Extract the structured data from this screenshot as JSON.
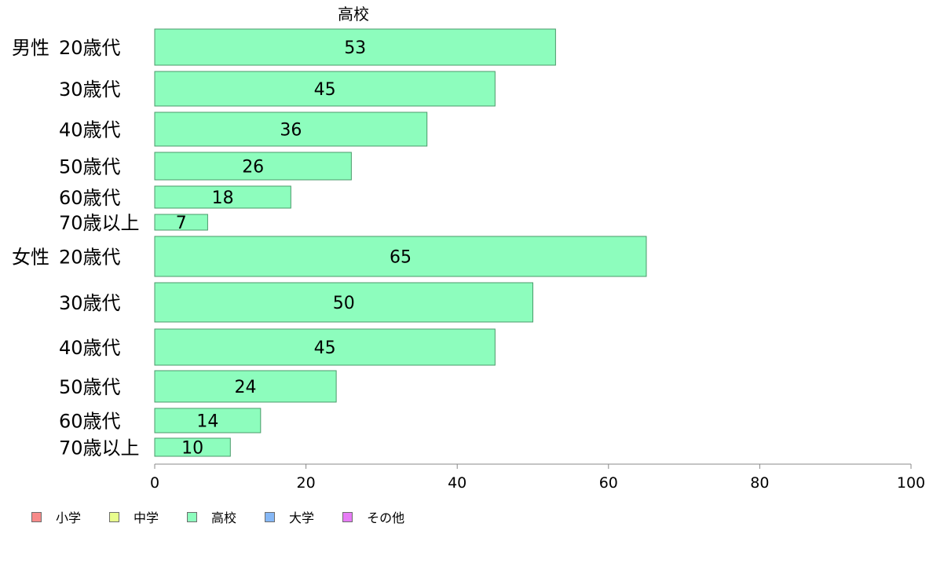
{
  "chart_data": {
    "type": "bar",
    "orientation": "horizontal",
    "title": "高校",
    "xlim": [
      0,
      100
    ],
    "xticks": [
      0,
      20,
      40,
      60,
      80,
      100
    ],
    "groups": [
      {
        "label": "男性",
        "categories": [
          "20歳代",
          "30歳代",
          "40歳代",
          "50歳代",
          "60歳代",
          "70歳以上"
        ],
        "values": [
          53,
          45,
          36,
          26,
          18,
          7
        ]
      },
      {
        "label": "女性",
        "categories": [
          "20歳代",
          "30歳代",
          "40歳代",
          "50歳代",
          "60歳代",
          "70歳以上"
        ],
        "values": [
          65,
          50,
          45,
          24,
          14,
          10
        ]
      }
    ],
    "bar_color": "#8dfdbd",
    "bar_edge": "#4a9a6a",
    "grid": false,
    "legend_position": "bottom-left",
    "legend": [
      {
        "name": "小学",
        "color": "#f78a89"
      },
      {
        "name": "中学",
        "color": "#e8fd8d"
      },
      {
        "name": "高校",
        "color": "#8dfdbd"
      },
      {
        "name": "大学",
        "color": "#86b8f6"
      },
      {
        "name": "その他",
        "color": "#e77cf6"
      }
    ]
  }
}
